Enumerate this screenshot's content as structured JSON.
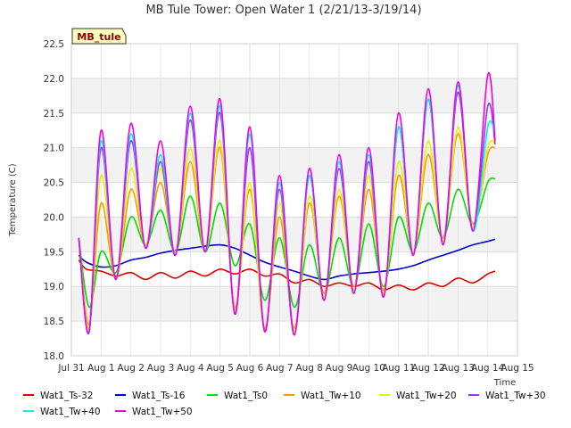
{
  "chart_data": {
    "type": "line",
    "title": "MB Tule Tower: Open Water 1 (2/21/13-3/19/14)",
    "tag": "MB_tule",
    "xlabel": "Time",
    "ylabel": "Temperature (C)",
    "ylim": [
      18.0,
      22.5
    ],
    "yticks": [
      18.0,
      18.5,
      19.0,
      19.5,
      20.0,
      20.5,
      21.0,
      21.5,
      22.0,
      22.5
    ],
    "xlim": [
      0,
      15
    ],
    "xticks": [
      {
        "pos": 0,
        "label": "Jul 31"
      },
      {
        "pos": 1,
        "label": "Aug 1"
      },
      {
        "pos": 2,
        "label": "Aug 2"
      },
      {
        "pos": 3,
        "label": "Aug 3"
      },
      {
        "pos": 4,
        "label": "Aug 4"
      },
      {
        "pos": 5,
        "label": "Aug 5"
      },
      {
        "pos": 6,
        "label": "Aug 6"
      },
      {
        "pos": 7,
        "label": "Aug 7"
      },
      {
        "pos": 8,
        "label": "Aug 8"
      },
      {
        "pos": 9,
        "label": "Aug 9"
      },
      {
        "pos": 10,
        "label": "Aug 10"
      },
      {
        "pos": 11,
        "label": "Aug 11"
      },
      {
        "pos": 12,
        "label": "Aug 12"
      },
      {
        "pos": 13,
        "label": "Aug 13"
      },
      {
        "pos": 14,
        "label": "Aug 14"
      },
      {
        "pos": 15,
        "label": "Aug 15"
      }
    ],
    "grid": true,
    "legend_position": "bottom",
    "series": [
      {
        "name": "Wat1_Ts-32",
        "color": "#dd0000",
        "x": [
          0.25,
          0.5,
          1,
          1.5,
          2,
          2.5,
          3,
          3.5,
          4,
          4.5,
          5,
          5.5,
          6,
          6.5,
          7,
          7.5,
          8,
          8.5,
          9,
          9.5,
          10,
          10.5,
          11,
          11.5,
          12,
          12.5,
          13,
          13.5,
          14,
          14.25
        ],
        "y": [
          19.38,
          19.25,
          19.22,
          19.15,
          19.2,
          19.1,
          19.2,
          19.12,
          19.22,
          19.15,
          19.25,
          19.18,
          19.25,
          19.15,
          19.18,
          19.05,
          19.1,
          19.0,
          19.05,
          19.0,
          19.05,
          18.95,
          19.02,
          18.95,
          19.05,
          19.0,
          19.12,
          19.05,
          19.18,
          19.22
        ]
      },
      {
        "name": "Wat1_Ts-16",
        "color": "#0000cc",
        "x": [
          0.25,
          0.5,
          1,
          1.5,
          2,
          2.5,
          3,
          3.5,
          4,
          4.5,
          5,
          5.5,
          6,
          6.5,
          7,
          7.5,
          8,
          8.5,
          9,
          9.5,
          10,
          10.5,
          11,
          11.5,
          12,
          12.5,
          13,
          13.5,
          14,
          14.25
        ],
        "y": [
          19.45,
          19.35,
          19.28,
          19.3,
          19.38,
          19.42,
          19.48,
          19.52,
          19.55,
          19.58,
          19.6,
          19.55,
          19.45,
          19.35,
          19.28,
          19.22,
          19.15,
          19.1,
          19.15,
          19.18,
          19.2,
          19.22,
          19.25,
          19.3,
          19.38,
          19.45,
          19.52,
          19.6,
          19.65,
          19.68
        ]
      },
      {
        "name": "Wat1_Ts0",
        "color": "#00dd00",
        "x": [
          0.25,
          0.6,
          1,
          1.5,
          2,
          2.5,
          3,
          3.5,
          4,
          4.5,
          5,
          5.5,
          6,
          6.5,
          7,
          7.5,
          8,
          8.5,
          9,
          9.5,
          10,
          10.5,
          11,
          11.5,
          12,
          12.5,
          13,
          13.5,
          14,
          14.25
        ],
        "y": [
          19.7,
          18.7,
          19.5,
          19.2,
          20.0,
          19.6,
          20.1,
          19.5,
          20.3,
          19.5,
          20.2,
          19.3,
          19.9,
          18.8,
          19.7,
          18.7,
          19.6,
          18.9,
          19.7,
          19.0,
          19.9,
          19.0,
          20.0,
          19.5,
          20.2,
          19.7,
          20.4,
          19.9,
          20.5,
          20.55
        ]
      },
      {
        "name": "Wat1_Tw+10",
        "color": "#ff9900",
        "x": [
          0.25,
          0.6,
          1,
          1.5,
          2,
          2.5,
          3,
          3.5,
          4,
          4.5,
          5,
          5.5,
          6,
          6.5,
          7,
          7.5,
          8,
          8.5,
          9,
          9.5,
          10,
          10.5,
          11,
          11.5,
          12,
          12.5,
          13,
          13.5,
          14,
          14.25
        ],
        "y": [
          19.7,
          18.45,
          20.2,
          19.1,
          20.4,
          19.6,
          20.5,
          19.5,
          20.8,
          19.5,
          21.0,
          18.7,
          20.4,
          18.4,
          20.0,
          18.4,
          20.2,
          18.9,
          20.3,
          19.0,
          20.4,
          18.95,
          20.6,
          19.5,
          20.9,
          19.7,
          21.2,
          19.9,
          20.9,
          21.0
        ]
      },
      {
        "name": "Wat1_Tw+20",
        "color": "#eeee00",
        "x": [
          0.25,
          0.6,
          1,
          1.5,
          2,
          2.5,
          3,
          3.5,
          4,
          4.5,
          5,
          5.5,
          6,
          6.5,
          7,
          7.5,
          8,
          8.5,
          9,
          9.5,
          10,
          10.5,
          11,
          11.5,
          12,
          12.5,
          13,
          13.5,
          14,
          14.25
        ],
        "y": [
          19.7,
          18.4,
          20.6,
          19.1,
          20.7,
          19.6,
          20.7,
          19.5,
          21.0,
          19.5,
          21.1,
          18.65,
          20.5,
          18.35,
          20.2,
          18.35,
          20.3,
          18.85,
          20.4,
          18.95,
          20.6,
          18.9,
          20.8,
          19.5,
          21.1,
          19.65,
          21.3,
          19.85,
          21.0,
          21.05
        ]
      },
      {
        "name": "Wat1_Tw+30",
        "color": "#9933ee",
        "x": [
          0.25,
          0.6,
          1,
          1.5,
          2,
          2.5,
          3,
          3.5,
          4,
          4.5,
          5,
          5.5,
          6,
          6.5,
          7,
          7.5,
          8,
          8.5,
          9,
          9.5,
          10,
          10.5,
          11,
          11.5,
          12,
          12.5,
          13,
          13.5,
          14,
          14.25
        ],
        "y": [
          19.7,
          18.35,
          21.0,
          19.1,
          21.1,
          19.55,
          20.8,
          19.45,
          21.4,
          19.5,
          21.5,
          18.6,
          21.0,
          18.35,
          20.4,
          18.3,
          20.6,
          18.8,
          20.7,
          18.9,
          20.8,
          18.85,
          21.3,
          19.45,
          21.7,
          19.6,
          21.8,
          19.8,
          21.6,
          21.05
        ]
      },
      {
        "name": "Wat1_Tw+40",
        "color": "#00eeee",
        "x": [
          0.25,
          0.6,
          1,
          1.5,
          2,
          2.5,
          3,
          3.5,
          4,
          4.5,
          5,
          5.5,
          6,
          6.5,
          7,
          7.5,
          8,
          8.5,
          9,
          9.5,
          10,
          10.5,
          11,
          11.5,
          12,
          12.5,
          13,
          13.5,
          14,
          14.25
        ],
        "y": [
          19.7,
          18.35,
          21.1,
          19.1,
          21.2,
          19.55,
          20.9,
          19.45,
          21.5,
          19.5,
          21.6,
          18.6,
          21.2,
          18.35,
          20.5,
          18.3,
          20.6,
          18.8,
          20.8,
          18.9,
          20.9,
          18.85,
          21.3,
          19.45,
          21.7,
          19.6,
          21.9,
          19.8,
          21.3,
          21.2
        ]
      },
      {
        "name": "Wat1_Tw+50",
        "color": "#ee00ee",
        "x": [
          0.25,
          0.6,
          1,
          1.5,
          2,
          2.5,
          3,
          3.5,
          4,
          4.5,
          5,
          5.5,
          6,
          6.5,
          7,
          7.5,
          8,
          8.5,
          9,
          9.5,
          10,
          10.5,
          11,
          11.5,
          12,
          12.5,
          13,
          13.5,
          14,
          14.25
        ],
        "y": [
          19.7,
          18.35,
          21.25,
          19.1,
          21.35,
          19.55,
          21.1,
          19.45,
          21.6,
          19.5,
          21.7,
          18.6,
          21.3,
          18.35,
          20.6,
          18.3,
          20.7,
          18.8,
          20.9,
          18.9,
          21.0,
          18.85,
          21.5,
          19.45,
          21.85,
          19.6,
          21.95,
          19.8,
          22.05,
          21.1
        ]
      }
    ]
  }
}
